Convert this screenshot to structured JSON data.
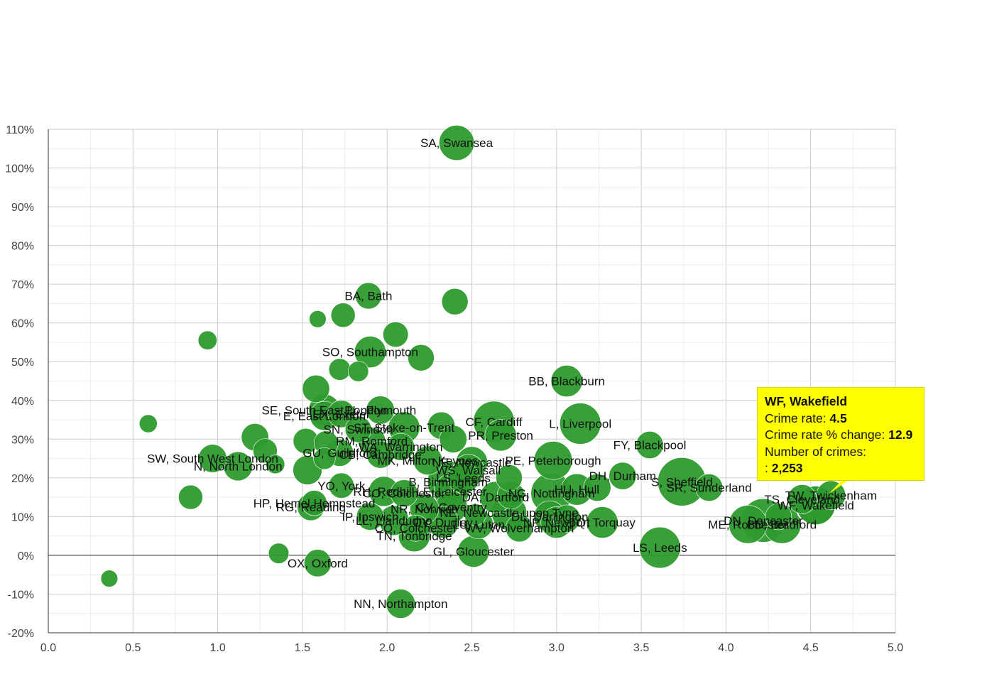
{
  "chart_data": {
    "type": "scatter",
    "xlabel": "",
    "ylabel": "",
    "xlim": [
      0,
      5
    ],
    "ylim": [
      -20,
      110
    ],
    "x_ticks": [
      "0.0",
      "0.5",
      "1.0",
      "1.5",
      "2.0",
      "2.5",
      "3.0",
      "3.5",
      "4.0",
      "4.5",
      "5.0"
    ],
    "y_ticks": [
      "-20%",
      "-10%",
      "0%",
      "10%",
      "20%",
      "30%",
      "40%",
      "50%",
      "60%",
      "70%",
      "80%",
      "90%",
      "100%",
      "110%"
    ],
    "color": "#2e9a2e",
    "highlight_color": "#ffff00",
    "points": [
      {
        "label": "SA, Swansea",
        "x": 2.41,
        "y": 106.5,
        "size": 2000
      },
      {
        "label": "BA, Bath",
        "x": 1.89,
        "y": 67,
        "size": 900
      },
      {
        "label": "",
        "x": 2.4,
        "y": 65.5,
        "size": 900
      },
      {
        "label": "",
        "x": 1.59,
        "y": 61,
        "size": 200
      },
      {
        "label": "",
        "x": 1.74,
        "y": 62,
        "size": 700
      },
      {
        "label": "",
        "x": 2.05,
        "y": 57,
        "size": 800
      },
      {
        "label": "",
        "x": 0.94,
        "y": 55.5,
        "size": 300
      },
      {
        "label": "SO, Southampton",
        "x": 1.9,
        "y": 52.5,
        "size": 1500
      },
      {
        "label": "",
        "x": 2.2,
        "y": 51,
        "size": 900
      },
      {
        "label": "",
        "x": 1.72,
        "y": 48,
        "size": 500
      },
      {
        "label": "",
        "x": 1.83,
        "y": 47.5,
        "size": 400
      },
      {
        "label": "BB, Blackburn",
        "x": 3.06,
        "y": 45,
        "size": 1500
      },
      {
        "label": "",
        "x": 1.58,
        "y": 43,
        "size": 1000
      },
      {
        "label": "SE, South East London",
        "x": 1.63,
        "y": 37.5,
        "size": 1500
      },
      {
        "label": "E, East London",
        "x": 1.63,
        "y": 36,
        "size": 1200
      },
      {
        "label": "EX, Exeter",
        "x": 1.73,
        "y": 36.5,
        "size": 1000
      },
      {
        "label": "PL, Plymouth",
        "x": 1.96,
        "y": 37.5,
        "size": 1100
      },
      {
        "label": "",
        "x": 0.59,
        "y": 34,
        "size": 250
      },
      {
        "label": "CF, Cardiff",
        "x": 2.63,
        "y": 34.5,
        "size": 3000
      },
      {
        "label": "L, Liverpool",
        "x": 3.14,
        "y": 34,
        "size": 3000
      },
      {
        "label": "ST, Stoke-on-Trent",
        "x": 2.1,
        "y": 33,
        "size": 1500
      },
      {
        "label": "",
        "x": 2.32,
        "y": 33.5,
        "size": 1000
      },
      {
        "label": "SN, Swindon",
        "x": 1.83,
        "y": 32.5,
        "size": 900
      },
      {
        "label": "",
        "x": 1.22,
        "y": 30.5,
        "size": 1000
      },
      {
        "label": "PR, Preston",
        "x": 2.67,
        "y": 31,
        "size": 1500
      },
      {
        "label": "",
        "x": 2.39,
        "y": 30,
        "size": 1000
      },
      {
        "label": "RM, Romford",
        "x": 1.91,
        "y": 29.5,
        "size": 1000
      },
      {
        "label": "",
        "x": 1.52,
        "y": 29.5,
        "size": 800
      },
      {
        "label": "",
        "x": 1.64,
        "y": 29,
        "size": 700
      },
      {
        "label": "FY, Blackpool",
        "x": 3.55,
        "y": 28.5,
        "size": 1000
      },
      {
        "label": "WA, Warrington",
        "x": 2.08,
        "y": 28,
        "size": 1000
      },
      {
        "label": "",
        "x": 1.28,
        "y": 27,
        "size": 700
      },
      {
        "label": "GU, Guildford",
        "x": 1.72,
        "y": 26.5,
        "size": 1000
      },
      {
        "label": "CB, Cambridge",
        "x": 1.96,
        "y": 26,
        "size": 1000
      },
      {
        "label": "",
        "x": 1.63,
        "y": 25,
        "size": 500
      },
      {
        "label": "MK, Milton Keynes",
        "x": 2.24,
        "y": 24.5,
        "size": 1200
      },
      {
        "label": "PE, Peterborough",
        "x": 2.98,
        "y": 24.5,
        "size": 2500
      },
      {
        "label": "SW, South West London",
        "x": 0.97,
        "y": 25,
        "size": 1100
      },
      {
        "label": "NE, Newcastle",
        "x": 2.5,
        "y": 24,
        "size": 1500
      },
      {
        "label": "",
        "x": 1.34,
        "y": 23.5,
        "size": 300
      },
      {
        "label": "N, North London",
        "x": 1.12,
        "y": 23,
        "size": 1200
      },
      {
        "label": "WS, Walsall",
        "x": 2.48,
        "y": 22,
        "size": 1500
      },
      {
        "label": "",
        "x": 1.53,
        "y": 22,
        "size": 1200
      },
      {
        "label": "DH, Durham",
        "x": 3.39,
        "y": 20.5,
        "size": 1000
      },
      {
        "label": "S, Sheffield",
        "x": 3.74,
        "y": 19,
        "size": 4500
      },
      {
        "label": "",
        "x": 2.72,
        "y": 20,
        "size": 900
      },
      {
        "label": "B, Birmingham",
        "x": 2.36,
        "y": 19,
        "size": 3000
      },
      {
        "label": "LS, Leeds",
        "x": 2.45,
        "y": 20,
        "size": 1500
      },
      {
        "label": "YO, York",
        "x": 1.73,
        "y": 18,
        "size": 800
      },
      {
        "label": "SR, Sunderland",
        "x": 3.9,
        "y": 17.5,
        "size": 1000
      },
      {
        "label": "",
        "x": 3.24,
        "y": 17.5,
        "size": 1000
      },
      {
        "label": "HU, Hull",
        "x": 3.12,
        "y": 17,
        "size": 1500
      },
      {
        "label": "LE, Leicester",
        "x": 2.38,
        "y": 16.5,
        "size": 2000
      },
      {
        "label": "RH, Redhill",
        "x": 1.98,
        "y": 16.5,
        "size": 1300
      },
      {
        "label": "CO, Colchester",
        "x": 2.1,
        "y": 16,
        "size": 1000
      },
      {
        "label": "NG, Nottingham",
        "x": 2.97,
        "y": 16,
        "size": 3000
      },
      {
        "label": "",
        "x": 2.73,
        "y": 15.5,
        "size": 1000
      },
      {
        "label": "DA, Dartford",
        "x": 2.64,
        "y": 15,
        "size": 1500
      },
      {
        "label": "",
        "x": 0.84,
        "y": 15,
        "size": 700
      },
      {
        "label": "HP, Hemel Hempstead",
        "x": 1.57,
        "y": 13.5,
        "size": 800
      },
      {
        "label": "RG, Reading",
        "x": 1.55,
        "y": 12.5,
        "size": 1000
      },
      {
        "label": "CV, Coventry",
        "x": 2.38,
        "y": 12.5,
        "size": 1500
      },
      {
        "label": "NR, Norwich",
        "x": 2.22,
        "y": 12,
        "size": 1200
      },
      {
        "label": "TS, Cleveland",
        "x": 4.45,
        "y": 14.5,
        "size": 1200
      },
      {
        "label": "TW, Twickenham",
        "x": 4.62,
        "y": 15.5,
        "size": 1200
      },
      {
        "label": "WF, Wakefield",
        "x": 4.53,
        "y": 12.9,
        "size": 2253,
        "highlighted": true
      },
      {
        "label": "NE, Newcastle upon Tyne",
        "x": 2.72,
        "y": 11,
        "size": 2000
      },
      {
        "label": "",
        "x": 2.52,
        "y": 10.5,
        "size": 500
      },
      {
        "label": "IP, Ipswich",
        "x": 1.9,
        "y": 10,
        "size": 1000
      },
      {
        "label": "DN, Doncaster",
        "x": 4.22,
        "y": 9,
        "size": 3500
      },
      {
        "label": "",
        "x": 4.31,
        "y": 10,
        "size": 900
      },
      {
        "label": "DL, Darlington",
        "x": 2.96,
        "y": 10,
        "size": 1500
      },
      {
        "label": "",
        "x": 3.06,
        "y": 9.5,
        "size": 1000
      },
      {
        "label": "LL, Llandudno",
        "x": 2.04,
        "y": 9,
        "size": 1300
      },
      {
        "label": "DY, Dudley",
        "x": 2.33,
        "y": 8.5,
        "size": 1500
      },
      {
        "label": "NP, Newport",
        "x": 3.0,
        "y": 8.5,
        "size": 1500
      },
      {
        "label": "LU, Luton",
        "x": 2.54,
        "y": 8,
        "size": 1200
      },
      {
        "label": "TQ, Torquay",
        "x": 3.27,
        "y": 8.5,
        "size": 1500
      },
      {
        "label": "BD, Bradford",
        "x": 4.33,
        "y": 8,
        "size": 2500
      },
      {
        "label": "ME, Rochester",
        "x": 4.13,
        "y": 8,
        "size": 2500
      },
      {
        "label": "WV, Wolverhampton",
        "x": 2.78,
        "y": 7,
        "size": 1000
      },
      {
        "label": "CO, Colchester",
        "x": 2.17,
        "y": 7,
        "size": 900
      },
      {
        "label": "TN, Tonbridge",
        "x": 2.16,
        "y": 5,
        "size": 1500
      },
      {
        "label": "LS, Leeds",
        "x": 3.61,
        "y": 2,
        "size": 3000
      },
      {
        "label": "GL, Gloucester",
        "x": 2.51,
        "y": 1,
        "size": 1500
      },
      {
        "label": "",
        "x": 1.36,
        "y": 0.5,
        "size": 400
      },
      {
        "label": "OX, Oxford",
        "x": 1.59,
        "y": -2,
        "size": 1000
      },
      {
        "label": "",
        "x": 0.36,
        "y": -6,
        "size": 200
      },
      {
        "label": "NN, Northampton",
        "x": 2.08,
        "y": -12.5,
        "size": 1200
      }
    ],
    "tooltip": {
      "title": "WF, Wakefield",
      "rate_label": "Crime rate:",
      "rate_value": "4.5",
      "change_label": "Crime rate % change:",
      "change_value": "12.9",
      "count_label": "Number of crimes:",
      "count_prefix": ":",
      "count_value": "2,253"
    }
  }
}
